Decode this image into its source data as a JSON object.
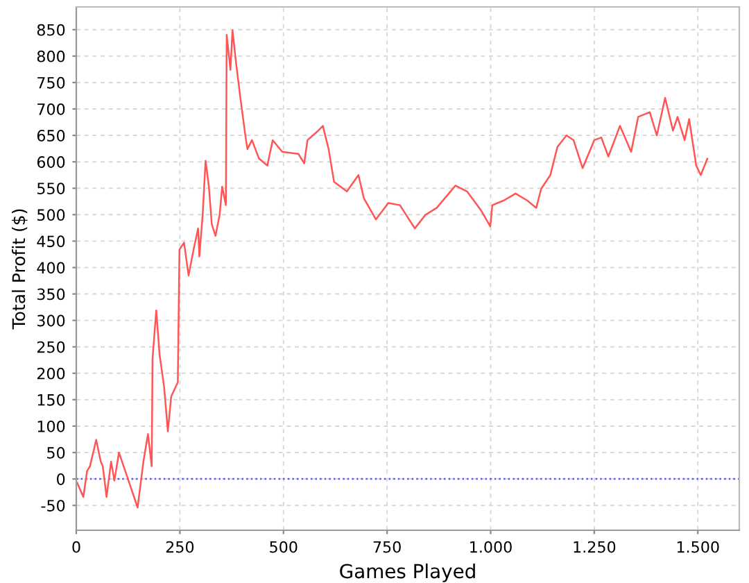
{
  "chart_data": {
    "type": "line",
    "xlabel": "Games Played",
    "ylabel": "Total Profit ($)",
    "xlim": [
      0,
      1600
    ],
    "ylim": [
      -97,
      893
    ],
    "xticks": [
      0,
      250,
      500,
      750,
      {
        "value": 1000,
        "label": "1.000"
      },
      {
        "value": 1250,
        "label": "1.250"
      },
      {
        "value": 1500,
        "label": "1.500"
      }
    ],
    "yticks": [
      -50,
      0,
      50,
      100,
      150,
      200,
      250,
      300,
      350,
      400,
      450,
      500,
      550,
      600,
      650,
      700,
      750,
      800,
      850
    ],
    "grid": true,
    "legend": false,
    "marker": "none",
    "line_style": "solid",
    "series": [
      {
        "color": "#ff5555",
        "x": [
          2,
          17,
          26,
          33,
          48,
          59,
          64,
          73,
          84,
          92,
          103,
          126,
          148,
          162,
          173,
          182,
          184,
          193,
          201,
          212,
          221,
          229,
          245,
          249,
          260,
          271,
          282,
          294,
          297,
          305,
          312,
          320,
          327,
          336,
          346,
          352,
          361,
          363,
          372,
          377,
          385,
          396,
          408,
          413,
          424,
          441,
          461,
          474,
          497,
          536,
          550,
          558,
          584,
          595,
          609,
          622,
          653,
          681,
          694,
          723,
          753,
          781,
          817,
          843,
          870,
          915,
          943,
          976,
          999,
          1004,
          1032,
          1060,
          1088,
          1110,
          1122,
          1144,
          1161,
          1183,
          1200,
          1222,
          1250,
          1267,
          1284,
          1312,
          1339,
          1356,
          1384,
          1401,
          1421,
          1440,
          1451,
          1468,
          1479,
          1496,
          1507,
          1523
        ],
        "values": [
          -7,
          -34,
          15,
          24,
          74,
          33,
          24,
          -34,
          33,
          -3,
          50,
          -3,
          -54,
          33,
          85,
          24,
          227,
          319,
          235,
          174,
          90,
          156,
          183,
          434,
          447,
          385,
          430,
          474,
          421,
          500,
          602,
          553,
          482,
          460,
          500,
          553,
          518,
          840,
          774,
          849,
          791,
          721,
          650,
          624,
          641,
          606,
          593,
          641,
          619,
          615,
          597,
          641,
          659,
          668,
          624,
          562,
          544,
          575,
          531,
          491,
          522,
          518,
          474,
          500,
          513,
          555,
          544,
          509,
          478,
          518,
          527,
          540,
          527,
          513,
          549,
          575,
          628,
          650,
          641,
          588,
          641,
          646,
          610,
          668,
          619,
          685,
          694,
          650,
          721,
          659,
          685,
          641,
          681,
          593,
          575,
          606
        ]
      }
    ],
    "ref_lines": [
      {
        "axis": "y",
        "value": 0,
        "label": null,
        "color": "#5555ff",
        "line_style": "dotted"
      }
    ]
  }
}
